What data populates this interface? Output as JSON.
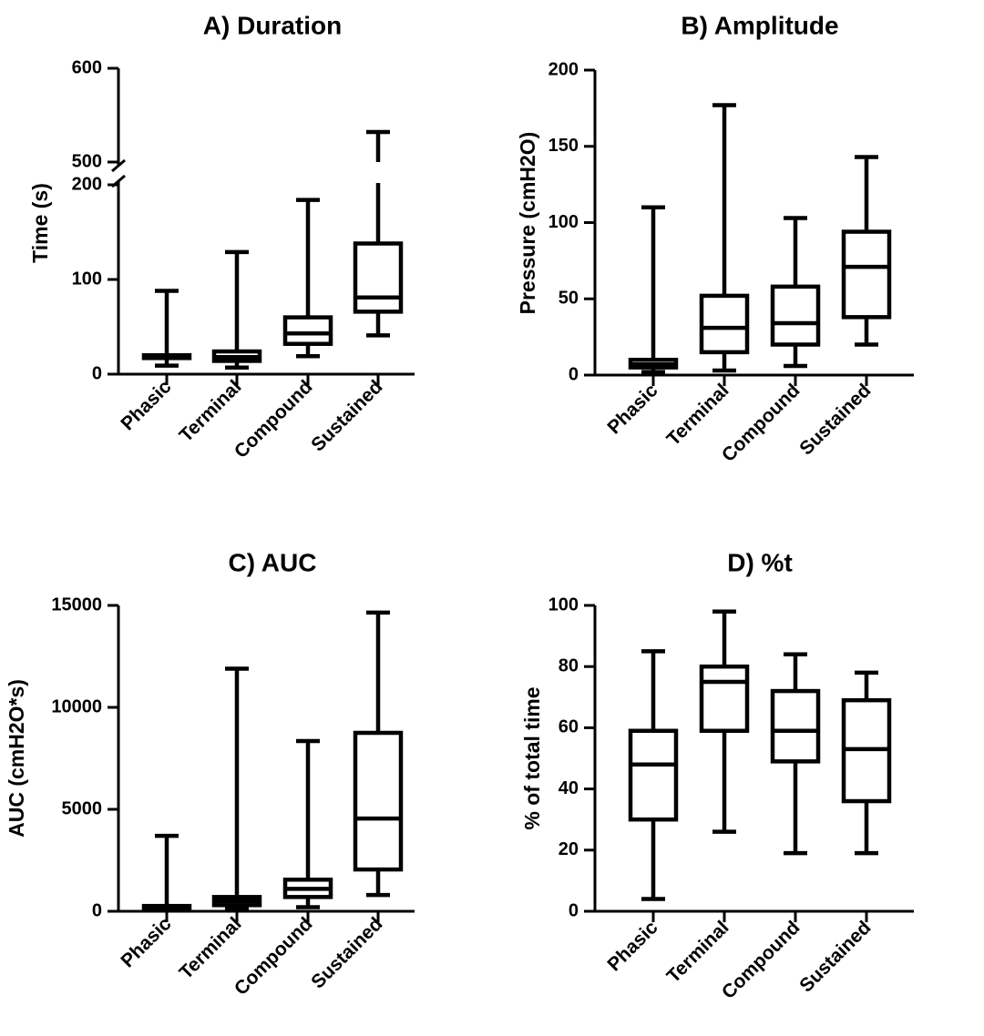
{
  "chart_data": [
    {
      "type": "box",
      "title": "A) Duration",
      "ylabel": "Time  (s)",
      "categories": [
        "Phasic",
        "Terminal",
        "Compound",
        "Sustained"
      ],
      "y_axis_break": {
        "lower_range": [
          0,
          200
        ],
        "upper_range": [
          500,
          600
        ]
      },
      "yticks": [
        0,
        100,
        200,
        500,
        600
      ],
      "boxes": [
        {
          "category": "Phasic",
          "min": 9,
          "q1": 17,
          "median": 19,
          "q3": 20,
          "max": 88
        },
        {
          "category": "Terminal",
          "min": 7,
          "q1": 14,
          "median": 18,
          "q3": 24,
          "max": 129
        },
        {
          "category": "Compound",
          "min": 19,
          "q1": 32,
          "median": 43,
          "q3": 60,
          "max": 184
        },
        {
          "category": "Sustained",
          "min": 41,
          "q1": 66,
          "median": 81,
          "q3": 138,
          "max": 532
        }
      ]
    },
    {
      "type": "box",
      "title": "B) Amplitude",
      "ylabel": "Pressure  (cmH2O)",
      "categories": [
        "Phasic",
        "Terminal",
        "Compound",
        "Sustained"
      ],
      "ylim": [
        0,
        200
      ],
      "yticks": [
        0,
        50,
        100,
        150,
        200
      ],
      "boxes": [
        {
          "category": "Phasic",
          "min": 2,
          "q1": 5,
          "median": 7,
          "q3": 10,
          "max": 110
        },
        {
          "category": "Terminal",
          "min": 3,
          "q1": 15,
          "median": 31,
          "q3": 52,
          "max": 177
        },
        {
          "category": "Compound",
          "min": 6,
          "q1": 20,
          "median": 34,
          "q3": 58,
          "max": 103
        },
        {
          "category": "Sustained",
          "min": 20,
          "q1": 38,
          "median": 71,
          "q3": 94,
          "max": 143
        }
      ]
    },
    {
      "type": "box",
      "title": "C) AUC",
      "ylabel": "AUC (cmH2O*s)",
      "categories": [
        "Phasic",
        "Terminal",
        "Compound",
        "Sustained"
      ],
      "ylim": [
        0,
        15000
      ],
      "yticks": [
        0,
        5000,
        10000,
        15000
      ],
      "boxes": [
        {
          "category": "Phasic",
          "min": 40,
          "q1": 120,
          "median": 180,
          "q3": 260,
          "max": 3700
        },
        {
          "category": "Terminal",
          "min": 100,
          "q1": 300,
          "median": 500,
          "q3": 700,
          "max": 11900
        },
        {
          "category": "Compound",
          "min": 200,
          "q1": 700,
          "median": 1100,
          "q3": 1550,
          "max": 8350
        },
        {
          "category": "Sustained",
          "min": 800,
          "q1": 2050,
          "median": 4550,
          "q3": 8750,
          "max": 14650
        }
      ]
    },
    {
      "type": "box",
      "title": "D) %t",
      "ylabel": "% of total time",
      "categories": [
        "Phasic",
        "Terminal",
        "Compound",
        "Sustained"
      ],
      "ylim": [
        0,
        100
      ],
      "yticks": [
        0,
        20,
        40,
        60,
        80,
        100
      ],
      "boxes": [
        {
          "category": "Phasic",
          "min": 4,
          "q1": 30,
          "median": 48,
          "q3": 59,
          "max": 85
        },
        {
          "category": "Terminal",
          "min": 26,
          "q1": 59,
          "median": 75,
          "q3": 80,
          "max": 98
        },
        {
          "category": "Compound",
          "min": 19,
          "q1": 49,
          "median": 59,
          "q3": 72,
          "max": 84
        },
        {
          "category": "Sustained",
          "min": 19,
          "q1": 36,
          "median": 53,
          "q3": 69,
          "max": 78
        }
      ]
    }
  ]
}
